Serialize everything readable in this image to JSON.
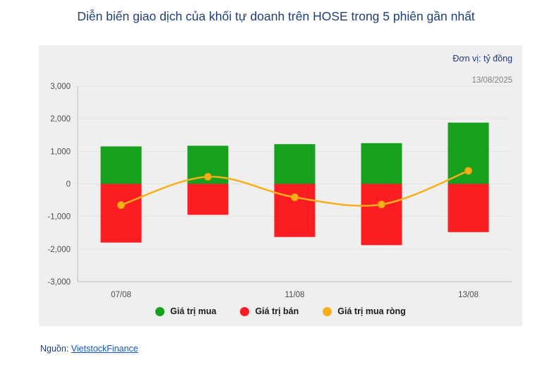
{
  "title": "Diễn biến giao dịch của khối tự doanh trên HOSE trong 5 phiên gần nhất",
  "unit_label": "Đơn vị: tỷ đồng",
  "date_label": "13/08/2025",
  "source": {
    "prefix": "Nguồn:",
    "link_text": "VietstockFinance"
  },
  "colors": {
    "title": "#1f3d7a",
    "panel_background": "#efefef",
    "gridline": "#e3e3e3",
    "axis": "#bdbdbd",
    "tick_text": "#4d4d4d",
    "buy_green": "#17a01d",
    "sell_red": "#fc1d22",
    "net_yellow": "#f7b01b",
    "net_point_stroke": "#d79b00",
    "link_blue": "#1155cc"
  },
  "chart_data": {
    "type": "bar",
    "categories": [
      "07/08",
      "",
      "11/08",
      "",
      "13/08"
    ],
    "series": [
      {
        "name": "Giá trị mua",
        "type": "bar",
        "color": "#17a01d",
        "values": [
          1150,
          1170,
          1220,
          1250,
          1880
        ]
      },
      {
        "name": "Giá trị bán",
        "type": "bar",
        "color": "#fc1d22",
        "values": [
          -1800,
          -950,
          -1630,
          -1880,
          -1480
        ]
      },
      {
        "name": "Giá trị mua ròng",
        "type": "line",
        "color": "#f7b01b",
        "values": [
          -650,
          220,
          -410,
          -630,
          400
        ]
      }
    ],
    "ylim": [
      -3000,
      3000
    ],
    "y_ticks": [
      3000,
      2000,
      1000,
      0,
      -1000,
      -2000,
      -3000
    ],
    "grid": true,
    "legend_position": "bottom"
  }
}
